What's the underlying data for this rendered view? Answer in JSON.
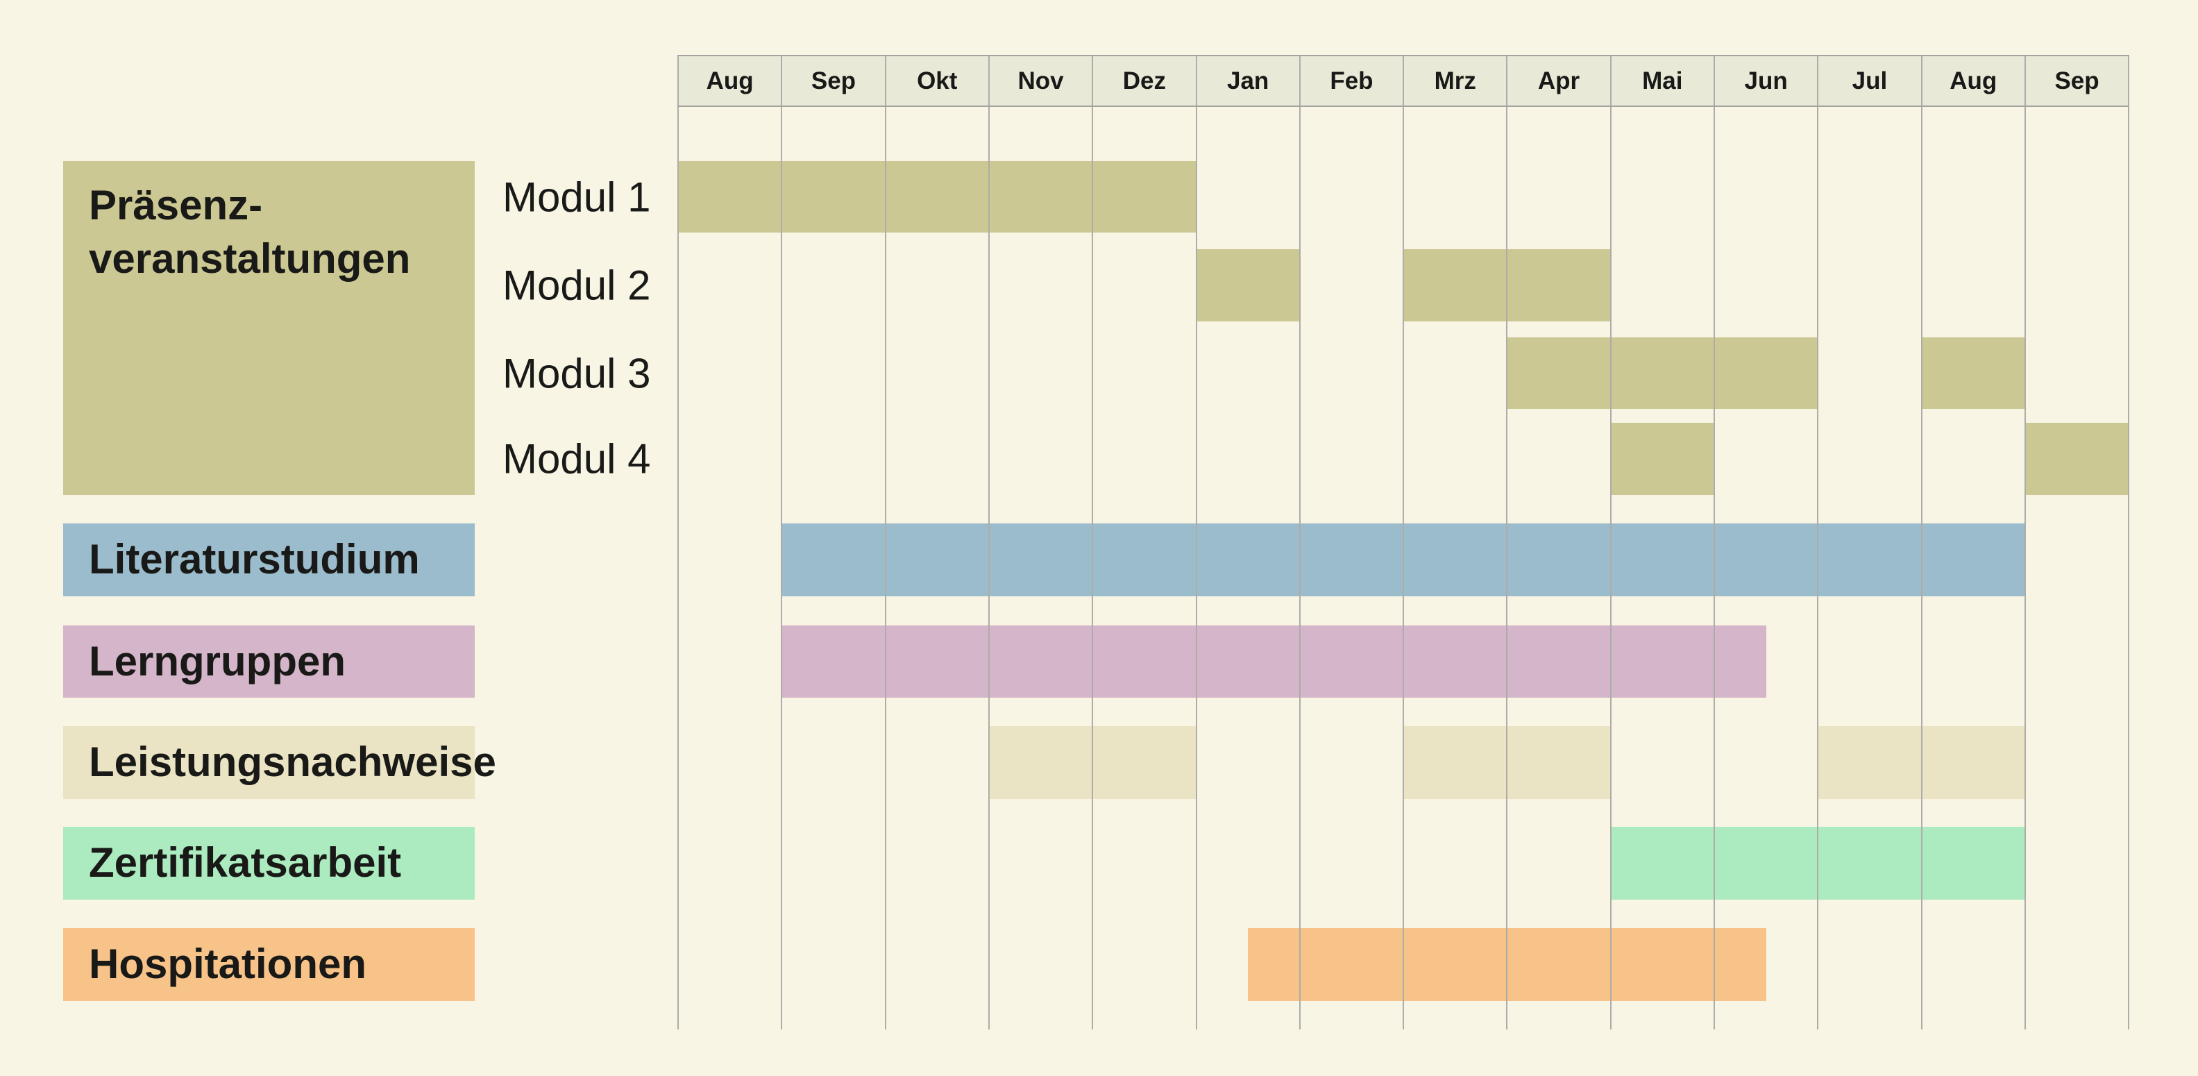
{
  "chart_data": {
    "type": "gantt",
    "title": "",
    "unit": "month",
    "grid": true,
    "legend_position": "left",
    "months": [
      "Aug",
      "Sep",
      "Okt",
      "Nov",
      "Dez",
      "Jan",
      "Feb",
      "Mrz",
      "Apr",
      "Mai",
      "Jun",
      "Jul",
      "Aug",
      "Sep"
    ],
    "axis_note": "14 monthly columns, Aug through Sep of following year",
    "colors": {
      "background": "#f8f5e5",
      "header_background": "#e9e9d8",
      "grid_line": "#aeaca8",
      "text": "#191917",
      "praesenz": "#cbc893",
      "literaturstudium": "#9bbccc",
      "lerngruppen": "#d4b5c9",
      "leistungsnachweise": "#eae4c4",
      "zertifikatsarbeit": "#abebbf",
      "hospitationen": "#f7c389"
    },
    "categories": [
      {
        "id": "praesenz",
        "label": "Präsenz-\nveranstaltungen",
        "color_key": "praesenz",
        "rows": [
          {
            "label": "Modul 1",
            "bars": [
              {
                "from": 0,
                "to": 5,
                "period": "Aug–Dez"
              }
            ]
          },
          {
            "label": "Modul 2",
            "bars": [
              {
                "from": 5,
                "to": 6,
                "period": "Jan"
              },
              {
                "from": 7,
                "to": 9,
                "period": "Mrz–Apr"
              }
            ]
          },
          {
            "label": "Modul 3",
            "bars": [
              {
                "from": 8,
                "to": 11,
                "period": "Apr–Jun"
              },
              {
                "from": 12,
                "to": 13,
                "period": "Aug"
              }
            ]
          },
          {
            "label": "Modul 4",
            "bars": [
              {
                "from": 9,
                "to": 10,
                "period": "Mai"
              },
              {
                "from": 13,
                "to": 14,
                "period": "Sep"
              }
            ]
          }
        ]
      },
      {
        "id": "literaturstudium",
        "label": "Literaturstudium",
        "color_key": "literaturstudium",
        "bars": [
          {
            "from": 1,
            "to": 13,
            "period": "Sep–Aug"
          }
        ]
      },
      {
        "id": "lerngruppen",
        "label": "Lerngruppen",
        "color_key": "lerngruppen",
        "bars": [
          {
            "from": 1,
            "to": 10.5,
            "period": "Sep–Mitte Jun"
          }
        ]
      },
      {
        "id": "leistungsnachweise",
        "label": "Leistungsnachweise",
        "color_key": "leistungsnachweise",
        "bars": [
          {
            "from": 3,
            "to": 5,
            "period": "Nov–Dez"
          },
          {
            "from": 7,
            "to": 9,
            "period": "Mrz–Apr"
          },
          {
            "from": 11,
            "to": 13,
            "period": "Jul–Aug"
          }
        ]
      },
      {
        "id": "zertifikatsarbeit",
        "label": "Zertifikatsarbeit",
        "color_key": "zertifikatsarbeit",
        "bars": [
          {
            "from": 9,
            "to": 13,
            "period": "Mai–Aug"
          }
        ]
      },
      {
        "id": "hospitationen",
        "label": "Hospitationen",
        "color_key": "hospitationen",
        "bars": [
          {
            "from": 5.5,
            "to": 10.5,
            "period": "Mitte Jan–Mitte Jun"
          }
        ]
      }
    ]
  }
}
